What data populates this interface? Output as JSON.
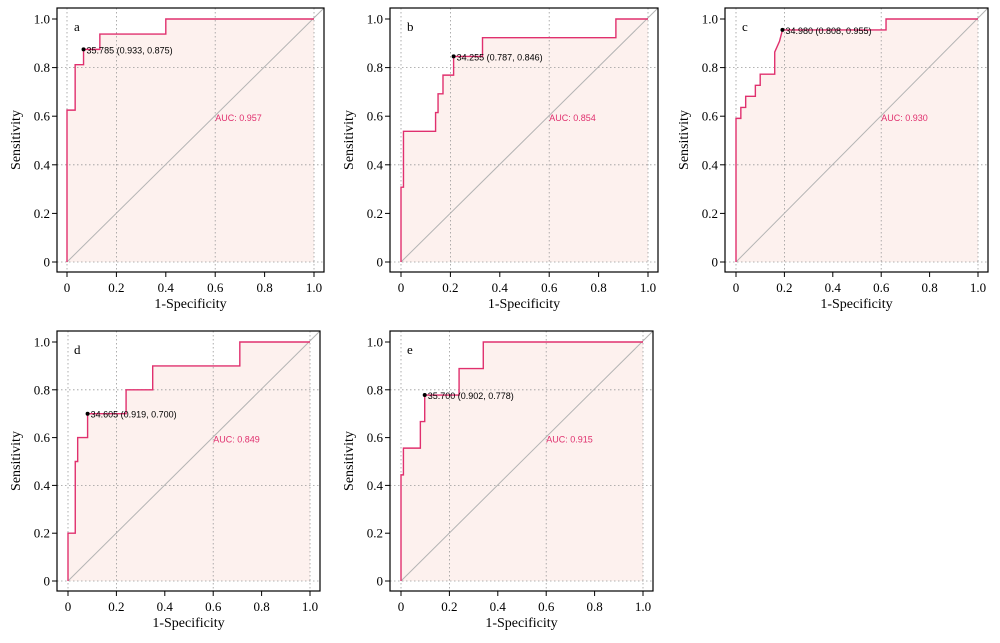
{
  "colors": {
    "roc": "#e0306e",
    "fill": "#fdf1ee",
    "grid": "#9a9a9a",
    "diagonal": "#b4b4b4",
    "auc_text": "#e0306e"
  },
  "chart_data": [
    {
      "type": "line",
      "panel_label": "a",
      "xlabel": "1-Specificity",
      "ylabel": "Sensitivity",
      "xlim": [
        0,
        1
      ],
      "ylim": [
        0,
        1
      ],
      "x_ticks": [
        "0",
        "0.2",
        "0.4",
        "0.6",
        "0.8",
        "1.0"
      ],
      "y_ticks": [
        "0",
        "0.2",
        "0.4",
        "0.6",
        "0.8",
        "1.0"
      ],
      "grid": true,
      "auc_label": "AUC: 0.957",
      "threshold_label": "35.785 (0.933, 0.875)",
      "threshold_point": [
        0.067,
        0.875
      ],
      "roc_points": [
        [
          0,
          0
        ],
        [
          0,
          0.625
        ],
        [
          0.033,
          0.625
        ],
        [
          0.033,
          0.75
        ],
        [
          0.033,
          0.812
        ],
        [
          0.067,
          0.812
        ],
        [
          0.067,
          0.875
        ],
        [
          0.133,
          0.875
        ],
        [
          0.133,
          0.938
        ],
        [
          0.4,
          0.938
        ],
        [
          0.4,
          1
        ],
        [
          1,
          1
        ]
      ]
    },
    {
      "type": "line",
      "panel_label": "b",
      "xlabel": "1-Specificity",
      "ylabel": "Sensitivity",
      "xlim": [
        0,
        1
      ],
      "ylim": [
        0,
        1
      ],
      "x_ticks": [
        "0",
        "0.2",
        "0.4",
        "0.6",
        "0.8",
        "1.0"
      ],
      "y_ticks": [
        "0",
        "0.2",
        "0.4",
        "0.6",
        "0.8",
        "1.0"
      ],
      "grid": true,
      "auc_label": "AUC: 0.854",
      "threshold_label": "34.255 (0.787, 0.846)",
      "threshold_point": [
        0.213,
        0.846
      ],
      "roc_points": [
        [
          0,
          0
        ],
        [
          0,
          0.308
        ],
        [
          0.01,
          0.308
        ],
        [
          0.01,
          0.538
        ],
        [
          0.14,
          0.538
        ],
        [
          0.14,
          0.615
        ],
        [
          0.15,
          0.615
        ],
        [
          0.15,
          0.692
        ],
        [
          0.17,
          0.692
        ],
        [
          0.17,
          0.769
        ],
        [
          0.213,
          0.769
        ],
        [
          0.213,
          0.846
        ],
        [
          0.33,
          0.846
        ],
        [
          0.33,
          0.923
        ],
        [
          0.87,
          0.923
        ],
        [
          0.87,
          1
        ],
        [
          1,
          1
        ]
      ]
    },
    {
      "type": "line",
      "panel_label": "c",
      "xlabel": "1-Specificity",
      "ylabel": "Sensitivity",
      "xlim": [
        0,
        1
      ],
      "ylim": [
        0,
        1
      ],
      "x_ticks": [
        "0",
        "0.2",
        "0.4",
        "0.6",
        "0.8",
        "1.0"
      ],
      "y_ticks": [
        "0",
        "0.2",
        "0.4",
        "0.6",
        "0.8",
        "1.0"
      ],
      "grid": true,
      "auc_label": "AUC: 0.930",
      "threshold_label": "34.980 (0.808, 0.955)",
      "threshold_point": [
        0.192,
        0.955
      ],
      "roc_points": [
        [
          0,
          0
        ],
        [
          0,
          0.591
        ],
        [
          0.02,
          0.591
        ],
        [
          0.02,
          0.636
        ],
        [
          0.04,
          0.636
        ],
        [
          0.04,
          0.682
        ],
        [
          0.08,
          0.682
        ],
        [
          0.08,
          0.727
        ],
        [
          0.1,
          0.727
        ],
        [
          0.1,
          0.773
        ],
        [
          0.16,
          0.773
        ],
        [
          0.16,
          0.864
        ],
        [
          0.18,
          0.909
        ],
        [
          0.192,
          0.955
        ],
        [
          0.62,
          0.955
        ],
        [
          0.62,
          1
        ],
        [
          1,
          1
        ]
      ]
    },
    {
      "type": "line",
      "panel_label": "d",
      "xlabel": "1-Specificity",
      "ylabel": "Sensitivity",
      "xlim": [
        0,
        1
      ],
      "ylim": [
        0,
        1
      ],
      "x_ticks": [
        "0",
        "0.2",
        "0.4",
        "0.6",
        "0.8",
        "1.0"
      ],
      "y_ticks": [
        "0",
        "0.2",
        "0.4",
        "0.6",
        "0.8",
        "1.0"
      ],
      "grid": true,
      "auc_label": "AUC: 0.849",
      "threshold_label": "34.605 (0.919, 0.700)",
      "threshold_point": [
        0.081,
        0.7
      ],
      "roc_points": [
        [
          0,
          0
        ],
        [
          0,
          0.2
        ],
        [
          0.03,
          0.2
        ],
        [
          0.03,
          0.5
        ],
        [
          0.04,
          0.5
        ],
        [
          0.04,
          0.6
        ],
        [
          0.081,
          0.6
        ],
        [
          0.081,
          0.7
        ],
        [
          0.24,
          0.7
        ],
        [
          0.24,
          0.8
        ],
        [
          0.35,
          0.8
        ],
        [
          0.35,
          0.9
        ],
        [
          0.71,
          0.9
        ],
        [
          0.71,
          1
        ],
        [
          1,
          1
        ]
      ]
    },
    {
      "type": "line",
      "panel_label": "e",
      "xlabel": "1-Specificity",
      "ylabel": "Sensitivity",
      "xlim": [
        0,
        1
      ],
      "ylim": [
        0,
        1
      ],
      "x_ticks": [
        "0",
        "0.2",
        "0.4",
        "0.6",
        "0.8",
        "1.0"
      ],
      "y_ticks": [
        "0",
        "0.2",
        "0.4",
        "0.6",
        "0.8",
        "1.0"
      ],
      "grid": true,
      "auc_label": "AUC: 0.915",
      "threshold_label": "35.700 (0.902, 0.778)",
      "threshold_point": [
        0.098,
        0.778
      ],
      "roc_points": [
        [
          0,
          0
        ],
        [
          0,
          0.444
        ],
        [
          0.01,
          0.444
        ],
        [
          0.01,
          0.556
        ],
        [
          0.08,
          0.556
        ],
        [
          0.08,
          0.667
        ],
        [
          0.098,
          0.667
        ],
        [
          0.098,
          0.778
        ],
        [
          0.24,
          0.778
        ],
        [
          0.24,
          0.889
        ],
        [
          0.34,
          0.889
        ],
        [
          0.34,
          1
        ],
        [
          1,
          1
        ]
      ]
    }
  ]
}
